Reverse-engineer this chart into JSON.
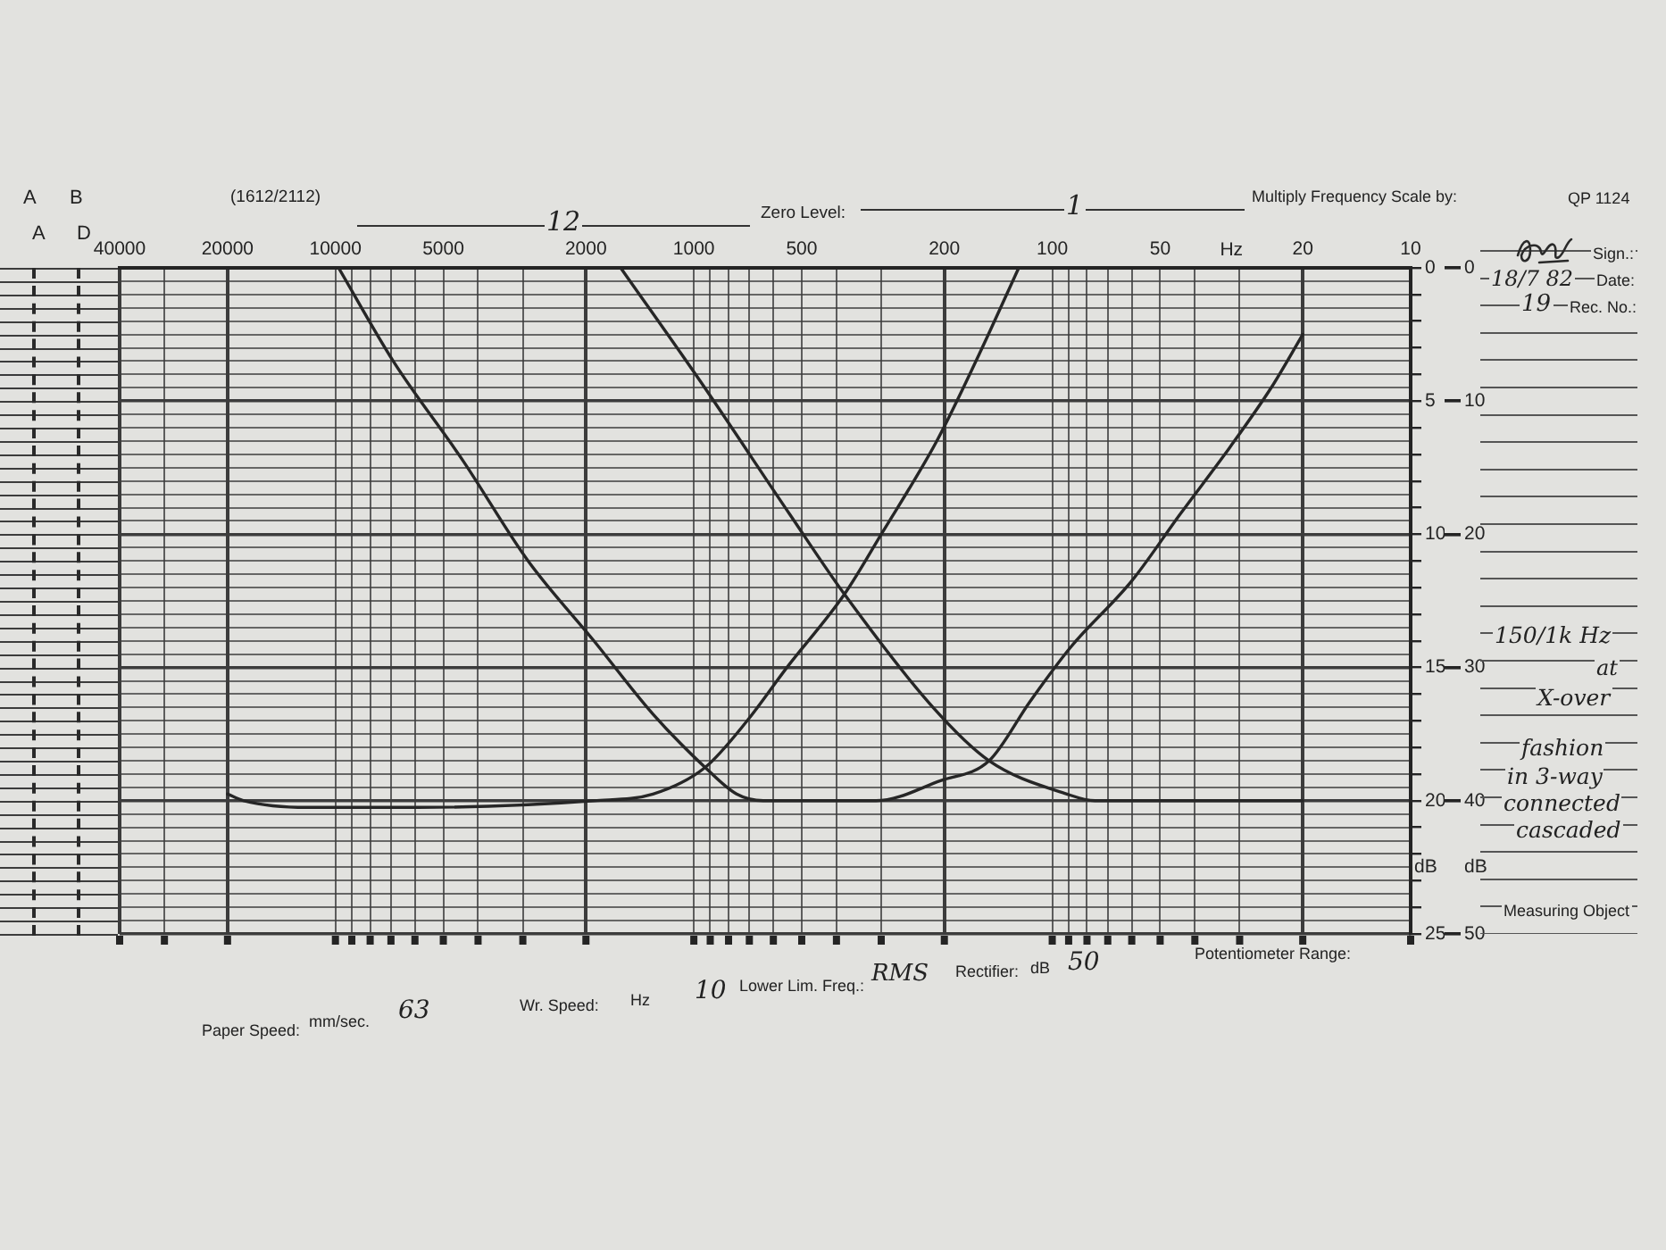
{
  "chart_data": {
    "type": "line",
    "xlabel": "Hz",
    "ylabel": "dB",
    "y2label": "dB",
    "log": "x",
    "grid": true,
    "legend": false,
    "marker": "none",
    "line_style": "solid",
    "xlim": [
      40000,
      10
    ],
    "xticks": [
      10,
      20,
      {
        "value": 30,
        "label": null
      },
      {
        "value": 40,
        "label": null
      },
      50,
      {
        "value": 60,
        "label": null
      },
      {
        "value": 70,
        "label": null
      },
      {
        "value": 80,
        "label": null
      },
      {
        "value": 90,
        "label": null
      },
      100,
      200,
      {
        "value": 300,
        "label": null
      },
      {
        "value": 400,
        "label": null
      },
      500,
      {
        "value": 600,
        "label": null
      },
      {
        "value": 700,
        "label": null
      },
      {
        "value": 800,
        "label": null
      },
      {
        "value": 900,
        "label": null
      },
      1000,
      2000,
      {
        "value": 3000,
        "label": null
      },
      {
        "value": 4000,
        "label": null
      },
      5000,
      {
        "value": 6000,
        "label": null
      },
      {
        "value": 7000,
        "label": null
      },
      {
        "value": 8000,
        "label": null
      },
      {
        "value": 9000,
        "label": null
      },
      10000,
      20000,
      {
        "value": 30000,
        "label": null
      },
      40000
    ],
    "ylim": [
      50,
      0
    ],
    "yticks": [
      0,
      {
        "value": 1,
        "label": null
      },
      {
        "value": 2,
        "label": null
      },
      {
        "value": 3,
        "label": null
      },
      {
        "value": 4,
        "label": null
      },
      {
        "value": 5,
        "label": null
      },
      {
        "value": 6,
        "label": null
      },
      {
        "value": 7,
        "label": null
      },
      {
        "value": 8,
        "label": null
      },
      {
        "value": 9,
        "label": null
      },
      10,
      {
        "value": 11,
        "label": null
      },
      {
        "value": 12,
        "label": null
      },
      {
        "value": 13,
        "label": null
      },
      {
        "value": 14,
        "label": null
      },
      {
        "value": 15,
        "label": null
      },
      {
        "value": 16,
        "label": null
      },
      {
        "value": 17,
        "label": null
      },
      {
        "value": 18,
        "label": null
      },
      {
        "value": 19,
        "label": null
      },
      20,
      {
        "value": 21,
        "label": null
      },
      {
        "value": 22,
        "label": null
      },
      {
        "value": 23,
        "label": null
      },
      {
        "value": 24,
        "label": null
      },
      {
        "value": 25,
        "label": null
      },
      {
        "value": 26,
        "label": null
      },
      {
        "value": 27,
        "label": null
      },
      {
        "value": 28,
        "label": null
      },
      {
        "value": 29,
        "label": null
      },
      30,
      {
        "value": 31,
        "label": null
      },
      {
        "value": 32,
        "label": null
      },
      {
        "value": 33,
        "label": null
      },
      {
        "value": 34,
        "label": null
      },
      {
        "value": 35,
        "label": null
      },
      {
        "value": 36,
        "label": null
      },
      {
        "value": 37,
        "label": null
      },
      {
        "value": 38,
        "label": null
      },
      {
        "value": 39,
        "label": null
      },
      40,
      {
        "value": 41,
        "label": null
      },
      {
        "value": 42,
        "label": null
      },
      {
        "value": 43,
        "label": null
      },
      {
        "value": 44,
        "label": null
      },
      {
        "value": 45,
        "label": null
      },
      {
        "value": 46,
        "label": null
      },
      {
        "value": 47,
        "label": null
      },
      {
        "value": 48,
        "label": null
      },
      {
        "value": 49,
        "label": null
      },
      50
    ],
    "y2lim": [
      25,
      0
    ],
    "y2ticks": [
      0,
      {
        "value": 1,
        "label": null
      },
      {
        "value": 2,
        "label": null
      },
      {
        "value": 3,
        "label": null
      },
      {
        "value": 4,
        "label": null
      },
      5,
      {
        "value": 6,
        "label": null
      },
      {
        "value": 7,
        "label": null
      },
      {
        "value": 8,
        "label": null
      },
      {
        "value": 9,
        "label": null
      },
      10,
      {
        "value": 11,
        "label": null
      },
      {
        "value": 12,
        "label": null
      },
      {
        "value": 13,
        "label": null
      },
      {
        "value": 14,
        "label": null
      },
      15,
      {
        "value": 16,
        "label": null
      },
      {
        "value": 17,
        "label": null
      },
      {
        "value": 18,
        "label": null
      },
      {
        "value": 19,
        "label": null
      },
      20,
      {
        "value": 21,
        "label": null
      },
      {
        "value": 22,
        "label": null
      },
      {
        "value": 23,
        "label": null
      },
      {
        "value": 24,
        "label": null
      },
      25
    ],
    "series": [
      {
        "color": "#262626",
        "x": [
          124,
          160,
          210,
          300,
          380,
          550,
          710,
          930,
          1300,
          1900,
          5900,
          12000,
          18000,
          20000
        ],
        "values": [
          0,
          6.5,
          13,
          20,
          24.5,
          30,
          34,
          37.5,
          39.5,
          40,
          40.5,
          40.5,
          40,
          39.5
        ]
      },
      {
        "color": "#262626",
        "x": [
          20,
          76,
          91,
          150,
          215,
          380,
          540,
          960,
          1600
        ],
        "values": [
          40,
          40,
          39.5,
          37,
          33,
          24.5,
          18.5,
          8.5,
          0
        ]
      },
      {
        "color": "#262626",
        "x": [
          20,
          24.5,
          32,
          44,
          60,
          89,
          115,
          150,
          205,
          310,
          640,
          760,
          930,
          1300,
          1900,
          2900,
          4400,
          6900,
          9800
        ],
        "values": [
          5,
          9,
          13.5,
          18.5,
          23.5,
          28.5,
          32.5,
          37,
          38.5,
          40,
          40,
          39.5,
          37.5,
          33.5,
          28,
          22,
          14.5,
          7,
          0
        ]
      }
    ],
    "annotations": [
      "Potentiometer Range:",
      "50",
      "dB",
      "Rectifier:",
      "RMS",
      "Lower Lim. Freq.:",
      "10",
      "Hz",
      "Wr. Speed:",
      "63",
      "mm/sec.",
      "Paper Speed:",
      "Measuring Object",
      "cascaded",
      "connected",
      "in 3-way",
      "fashion",
      "X-over",
      "at",
      "150/1k Hz",
      "Rec. No.:",
      "19",
      "Date:",
      "18/7 82",
      "Sign.:",
      "QP 1124",
      "Multiply Frequency Scale by:",
      "1",
      "Zero Level:",
      "12",
      "(1612/2112)",
      "A",
      "B",
      "D",
      "A"
    ]
  }
}
